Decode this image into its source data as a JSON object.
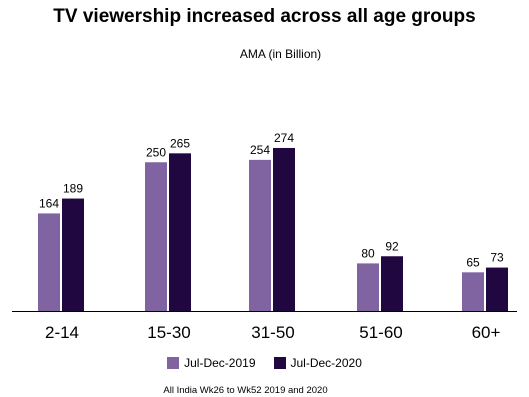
{
  "chart_data": {
    "type": "bar",
    "title": "TV viewership increased across all age groups",
    "subtitle": "AMA (in Billion)",
    "categories": [
      "2-14",
      "15-30",
      "31-50",
      "51-60",
      "60+"
    ],
    "series": [
      {
        "name": "Jul-Dec-2019",
        "color": "#8064a2",
        "values": [
          164,
          250,
          254,
          80,
          65
        ]
      },
      {
        "name": "Jul-Dec-2020",
        "color": "#20073f",
        "values": [
          189,
          265,
          274,
          92,
          73
        ]
      }
    ],
    "ylim": [
      0,
      300
    ],
    "grid": false,
    "data_labels": true,
    "legend_position": "bottom",
    "footnote": "All India Wk26 to Wk52 2019 and 2020"
  }
}
